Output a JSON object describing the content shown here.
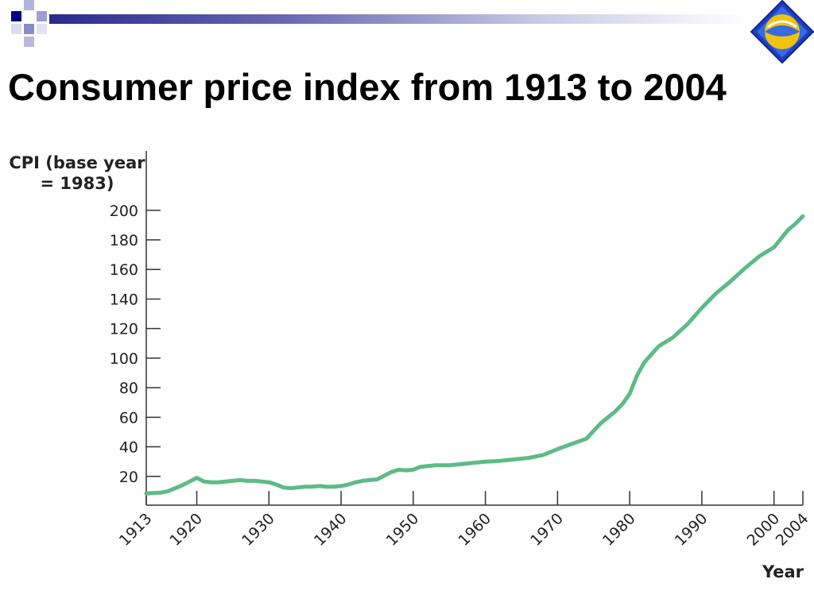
{
  "slide": {
    "title": "Consumer price index from 1913 to 2004"
  },
  "colors": {
    "line": "#5dbb86",
    "axis": "#333333",
    "header_dark": "#2a2a8c",
    "header_light": "#b5b5dc",
    "logo_blue": "#2e4fd0",
    "logo_orange": "#f2c20c"
  },
  "chart_data": {
    "type": "line",
    "title": "",
    "ylabel": "CPI (base year = 1983)",
    "ylabel_lines": [
      "CPI (base year",
      "= 1983)"
    ],
    "xlabel": "Year",
    "xlim": [
      1913,
      2004
    ],
    "ylim": [
      0,
      200
    ],
    "yticks": [
      20,
      40,
      60,
      80,
      100,
      120,
      140,
      160,
      180,
      200
    ],
    "xticks": [
      1913,
      1920,
      1930,
      1940,
      1950,
      1960,
      1970,
      1980,
      1990,
      2000,
      2004
    ],
    "series": [
      {
        "x": [
          1913,
          1915,
          1916,
          1917,
          1918,
          1919,
          1920,
          1921,
          1922,
          1923,
          1924,
          1925,
          1926,
          1927,
          1928,
          1929,
          1930,
          1931,
          1932,
          1933,
          1934,
          1935,
          1936,
          1937,
          1938,
          1939,
          1940,
          1941,
          1942,
          1943,
          1944,
          1945,
          1946,
          1947,
          1948,
          1949,
          1950,
          1951,
          1952,
          1953,
          1955,
          1957,
          1958,
          1960,
          1962,
          1964,
          1966,
          1968,
          1970,
          1972,
          1974,
          1976,
          1978,
          1979,
          1980,
          1981,
          1982,
          1984,
          1986,
          1988,
          1990,
          1992,
          1994,
          1996,
          1998,
          2000,
          2002,
          2003,
          2004
        ],
        "values": [
          8.5,
          9,
          10,
          12,
          14,
          16.5,
          19,
          16.5,
          16,
          16,
          16.5,
          17,
          17.5,
          17,
          17,
          16.5,
          16,
          14.5,
          12.5,
          12,
          12.5,
          13,
          13,
          13.5,
          13,
          13,
          13.5,
          14.5,
          16,
          17,
          17.5,
          18,
          20.5,
          23,
          24.5,
          24,
          24.5,
          26.5,
          27,
          27.5,
          27.5,
          28.5,
          29,
          30,
          30.5,
          31.5,
          32.5,
          34.5,
          38.5,
          42,
          45.5,
          56,
          64,
          69,
          76,
          88,
          97,
          108,
          114,
          123,
          134,
          144,
          152,
          161,
          169,
          175,
          187,
          191,
          196
        ]
      }
    ]
  }
}
